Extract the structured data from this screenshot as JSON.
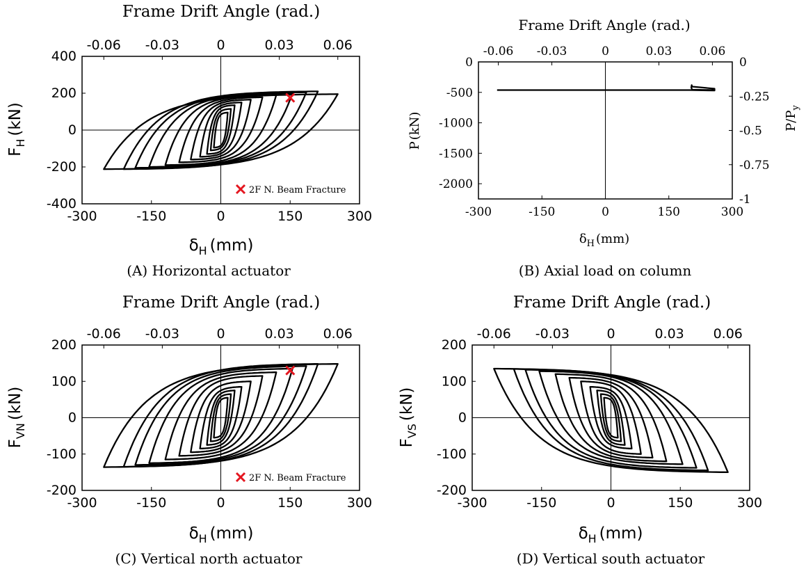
{
  "figure": {
    "colors": {
      "curve": "#000000",
      "marker": "#e4161f",
      "frame": "#000000",
      "background": "#ffffff"
    }
  },
  "chart_data": [
    {
      "id": "A",
      "type": "line",
      "caption": "(A) Horizontal actuator",
      "top_axis_title": "Frame Drift Angle (rad.)",
      "top_ticks": [
        "-0.06",
        "-0.03",
        "0",
        "0.03",
        "0.06"
      ],
      "top_tick_values": [
        -0.06,
        -0.03,
        0,
        0.03,
        0.06
      ],
      "xlabel_main": "δ",
      "xlabel_sub": "H",
      "xlabel_unit": "(mm)",
      "ylabel_main": "F",
      "ylabel_sub": "H",
      "ylabel_unit": "(kN)",
      "xlim": [
        -300,
        300
      ],
      "ylim": [
        -400,
        400
      ],
      "x_ticks": [
        -300,
        -150,
        0,
        150,
        300
      ],
      "y_ticks": [
        -400,
        -200,
        0,
        200,
        400
      ],
      "y_tick_labels": [
        "-400",
        "-200",
        "0",
        "200",
        "400"
      ],
      "zero_lines": true,
      "cycles": [
        {
          "amp": 15,
          "pmax": 95,
          "pmin": -95
        },
        {
          "amp": 22,
          "pmax": 115,
          "pmin": -110
        },
        {
          "amp": 30,
          "pmax": 135,
          "pmin": -130
        },
        {
          "amp": 45,
          "pmax": 150,
          "pmin": -145
        },
        {
          "amp": 65,
          "pmax": 165,
          "pmin": -160
        },
        {
          "amp": 90,
          "pmax": 178,
          "pmin": -175
        },
        {
          "amp": 120,
          "pmax": 190,
          "pmin": -190
        },
        {
          "amp": 155,
          "pmax": 200,
          "pmin": -200
        },
        {
          "amp": 185,
          "pmax": 205,
          "pmin": -205
        },
        {
          "amp": 210,
          "pmax": 210,
          "pmin": -212
        },
        {
          "amp": 253,
          "pmax": 195,
          "pmin": -212
        }
      ],
      "marker": {
        "x": 150,
        "y": 175,
        "label": "2F N. Beam Fracture"
      },
      "marker_legend_position": "bottom-right"
    },
    {
      "id": "B",
      "type": "line",
      "caption": "(B) Axial load on column",
      "top_axis_title": "Frame Drift Angle (rad.)",
      "top_ticks": [
        "-0.06",
        "-0.03",
        "0",
        "0.03",
        "0.06"
      ],
      "top_tick_values": [
        -0.06,
        -0.03,
        0,
        0.03,
        0.06
      ],
      "xlabel_main": "δ",
      "xlabel_sub": "H",
      "xlabel_unit": "(mm)",
      "ylabel_main": "P",
      "ylabel_sub": "",
      "ylabel_unit": "(kN)",
      "right_ylabel": "P/P",
      "right_ylabel_sub": "y",
      "xlim": [
        -300,
        300
      ],
      "ylim": [
        -2250,
        0
      ],
      "x_ticks": [
        -300,
        -150,
        0,
        150,
        300
      ],
      "y_ticks": [
        0,
        -500,
        -1000,
        -1500,
        -2000
      ],
      "y_tick_labels": [
        "0",
        "-500",
        "-1000",
        "-1500",
        "-2000"
      ],
      "right_ticks": [
        "0",
        "-0.25",
        "-0.5",
        "-0.75",
        "-1"
      ],
      "right_tick_values": [
        0,
        -0.25,
        -0.5,
        -0.75,
        -1
      ],
      "right_lim": [
        -1,
        0
      ],
      "zero_lines": "x-only",
      "series": [
        {
          "x": [
            -256,
            0,
            200,
            258,
            258,
            205,
            204,
            203,
            205,
            256
          ],
          "y": [
            -462,
            -462,
            -462,
            -470,
            -440,
            -405,
            -380,
            -420,
            -455,
            -462
          ]
        }
      ]
    },
    {
      "id": "C",
      "type": "line",
      "caption": "(C) Vertical north actuator",
      "top_axis_title": "Frame Drift Angle (rad.)",
      "top_ticks": [
        "-0.06",
        "-0.03",
        "0",
        "0.03",
        "0.06"
      ],
      "top_tick_values": [
        -0.06,
        -0.03,
        0,
        0.03,
        0.06
      ],
      "xlabel_main": "δ",
      "xlabel_sub": "H",
      "xlabel_unit": "(mm)",
      "ylabel_main": "F",
      "ylabel_sub": "VN",
      "ylabel_unit": "(kN)",
      "xlim": [
        -300,
        300
      ],
      "ylim": [
        -200,
        200
      ],
      "x_ticks": [
        -300,
        -150,
        0,
        150,
        300
      ],
      "y_ticks": [
        -200,
        -100,
        0,
        100,
        200
      ],
      "y_tick_labels": [
        "-200",
        "-100",
        "0",
        "100",
        "200"
      ],
      "zero_lines": true,
      "cycles": [
        {
          "amp": 15,
          "pmax": 55,
          "pmin": -55
        },
        {
          "amp": 22,
          "pmax": 65,
          "pmin": -65
        },
        {
          "amp": 30,
          "pmax": 75,
          "pmin": -75
        },
        {
          "amp": 45,
          "pmax": 85,
          "pmin": -85
        },
        {
          "amp": 65,
          "pmax": 100,
          "pmin": -95
        },
        {
          "amp": 90,
          "pmax": 115,
          "pmin": -105
        },
        {
          "amp": 120,
          "pmax": 125,
          "pmin": -115
        },
        {
          "amp": 155,
          "pmax": 135,
          "pmin": -125
        },
        {
          "amp": 185,
          "pmax": 142,
          "pmin": -130
        },
        {
          "amp": 210,
          "pmax": 148,
          "pmin": -135
        },
        {
          "amp": 253,
          "pmax": 148,
          "pmin": -136
        }
      ],
      "marker": {
        "x": 150,
        "y": 130,
        "label": "2F N. Beam Fracture"
      },
      "marker_legend_position": "bottom-right"
    },
    {
      "id": "D",
      "type": "line",
      "caption": "(D) Vertical south actuator",
      "top_axis_title": "Frame Drift Angle (rad.)",
      "top_ticks": [
        "-0.06",
        "-0.03",
        "0",
        "0.03",
        "0.06"
      ],
      "top_tick_values": [
        -0.06,
        -0.03,
        0,
        0.03,
        0.06
      ],
      "xlabel_main": "δ",
      "xlabel_sub": "H",
      "xlabel_unit": "(mm)",
      "ylabel_main": "F",
      "ylabel_sub": "VS",
      "ylabel_unit": "(kN)",
      "xlim": [
        -300,
        300
      ],
      "ylim": [
        -200,
        200
      ],
      "x_ticks": [
        -300,
        -150,
        0,
        150,
        300
      ],
      "y_ticks": [
        -200,
        -100,
        0,
        100,
        200
      ],
      "y_tick_labels": [
        "-200",
        "-100",
        "0",
        "100",
        "200"
      ],
      "zero_lines": true,
      "inverted": true,
      "cycles": [
        {
          "amp": 15,
          "pmax": 55,
          "pmin": -55
        },
        {
          "amp": 22,
          "pmax": 65,
          "pmin": -65
        },
        {
          "amp": 30,
          "pmax": 75,
          "pmin": -75
        },
        {
          "amp": 45,
          "pmax": 85,
          "pmin": -85
        },
        {
          "amp": 65,
          "pmax": 100,
          "pmin": -100
        },
        {
          "amp": 90,
          "pmax": 110,
          "pmin": -110
        },
        {
          "amp": 120,
          "pmax": 120,
          "pmin": -120
        },
        {
          "amp": 155,
          "pmax": 128,
          "pmin": -128
        },
        {
          "amp": 185,
          "pmax": 138,
          "pmin": -132
        },
        {
          "amp": 210,
          "pmax": 145,
          "pmin": -134
        },
        {
          "amp": 253,
          "pmax": 150,
          "pmin": -135
        }
      ]
    }
  ]
}
